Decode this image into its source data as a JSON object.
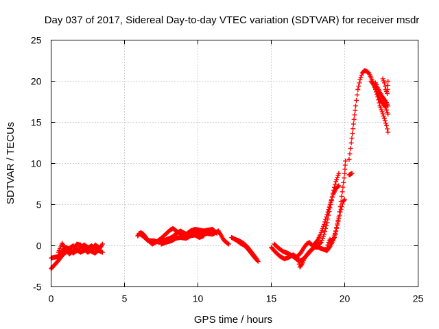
{
  "chart_data": {
    "type": "scatter",
    "title": "Day 037 of 2017, Sidereal Day-to-day VTEC variation (SDTVAR) for receiver msdr",
    "xlabel": "GPS time / hours",
    "ylabel": "SDTVAR / TECUs",
    "xlim": [
      0,
      25
    ],
    "ylim": [
      -5,
      25
    ],
    "x_ticks": [
      0,
      5,
      10,
      15,
      20,
      25
    ],
    "y_ticks": [
      -5,
      0,
      5,
      10,
      15,
      20,
      25
    ],
    "x_tick_labels": [
      "0",
      "5",
      "10",
      "15",
      "20",
      "25"
    ],
    "y_tick_labels": [
      "-5",
      "0",
      "5",
      "10",
      "15",
      "20",
      "25"
    ],
    "grid": true,
    "marker": "+",
    "series_color": "#ff0000",
    "series": [
      {
        "name": "SDTVAR",
        "segments": [
          [
            [
              0.0,
              -2.8
            ],
            [
              0.25,
              -2.3
            ],
            [
              0.5,
              -1.8
            ],
            [
              0.75,
              -1.2
            ],
            [
              1.0,
              -0.8
            ],
            [
              1.25,
              -0.3
            ],
            [
              1.5,
              0.0
            ],
            [
              1.75,
              -0.5
            ],
            [
              2.0,
              -0.8
            ],
            [
              2.25,
              -0.6
            ],
            [
              2.5,
              -0.3
            ],
            [
              2.75,
              0.0
            ],
            [
              3.0,
              -0.3
            ],
            [
              3.25,
              -0.6
            ],
            [
              3.5,
              -0.8
            ]
          ],
          [
            [
              0.0,
              -1.5
            ],
            [
              0.25,
              -1.4
            ],
            [
              0.5,
              -1.3
            ],
            [
              0.75,
              -0.7
            ],
            [
              1.0,
              -0.2
            ],
            [
              1.25,
              -0.4
            ],
            [
              1.5,
              -0.9
            ],
            [
              1.75,
              -0.6
            ],
            [
              2.0,
              -0.2
            ],
            [
              2.25,
              0.1
            ],
            [
              2.5,
              -0.2
            ],
            [
              2.75,
              -0.7
            ],
            [
              3.0,
              -0.9
            ],
            [
              3.25,
              -0.5
            ],
            [
              3.5,
              0.2
            ]
          ],
          [
            [
              0.5,
              -0.8
            ],
            [
              0.75,
              0.3
            ],
            [
              1.0,
              -0.5
            ],
            [
              1.25,
              -1.0
            ],
            [
              1.5,
              -0.6
            ],
            [
              1.75,
              0.2
            ],
            [
              2.0,
              0.1
            ],
            [
              2.25,
              -0.4
            ],
            [
              2.5,
              -0.8
            ],
            [
              2.75,
              -0.5
            ],
            [
              3.0,
              0.1
            ],
            [
              3.25,
              -0.2
            ]
          ],
          [
            [
              5.9,
              1.2
            ],
            [
              6.1,
              1.6
            ],
            [
              6.3,
              1.4
            ],
            [
              6.5,
              0.9
            ],
            [
              6.7,
              0.5
            ],
            [
              6.9,
              0.2
            ],
            [
              7.2,
              0.5
            ],
            [
              7.5,
              0.9
            ],
            [
              7.8,
              1.4
            ],
            [
              8.1,
              1.9
            ],
            [
              8.3,
              2.1
            ],
            [
              8.6,
              1.7
            ],
            [
              8.9,
              1.3
            ],
            [
              9.2,
              1.4
            ],
            [
              9.5,
              1.8
            ],
            [
              9.8,
              2.0
            ],
            [
              10.1,
              1.9
            ],
            [
              10.4,
              1.8
            ],
            [
              10.7,
              1.9
            ],
            [
              11.0,
              2.0
            ],
            [
              11.3,
              1.5
            ]
          ],
          [
            [
              6.0,
              1.5
            ],
            [
              6.3,
              1.1
            ],
            [
              6.6,
              0.6
            ],
            [
              7.0,
              0.6
            ],
            [
              7.4,
              0.4
            ],
            [
              7.8,
              0.7
            ],
            [
              8.2,
              1.0
            ],
            [
              8.5,
              1.4
            ],
            [
              8.8,
              1.8
            ],
            [
              9.1,
              1.5
            ],
            [
              9.5,
              1.2
            ],
            [
              9.8,
              1.5
            ],
            [
              10.2,
              1.4
            ],
            [
              10.6,
              1.5
            ],
            [
              11.0,
              1.4
            ],
            [
              11.4,
              1.8
            ],
            [
              11.6,
              1.2
            ],
            [
              11.8,
              0.6
            ],
            [
              12.1,
              0.2
            ]
          ],
          [
            [
              7.5,
              0.2
            ],
            [
              7.8,
              0.4
            ],
            [
              8.2,
              0.6
            ],
            [
              8.5,
              0.9
            ],
            [
              8.8,
              1.0
            ],
            [
              9.2,
              0.9
            ],
            [
              9.5,
              1.2
            ],
            [
              9.8,
              1.3
            ],
            [
              10.1,
              1.0
            ],
            [
              10.4,
              1.2
            ]
          ],
          [
            [
              12.3,
              1.0
            ],
            [
              12.6,
              0.7
            ],
            [
              12.9,
              0.3
            ],
            [
              13.2,
              0.0
            ],
            [
              13.5,
              -0.6
            ],
            [
              13.8,
              -1.3
            ],
            [
              14.1,
              -1.9
            ]
          ],
          [
            [
              12.5,
              0.8
            ],
            [
              12.8,
              0.6
            ],
            [
              13.1,
              0.3
            ],
            [
              13.4,
              -0.2
            ],
            [
              13.7,
              -0.9
            ],
            [
              14.0,
              -1.6
            ]
          ],
          [
            [
              15.0,
              -0.2
            ],
            [
              15.3,
              -0.8
            ],
            [
              15.6,
              -1.3
            ],
            [
              15.9,
              -1.6
            ],
            [
              16.2,
              -1.4
            ],
            [
              16.5,
              -1.1
            ],
            [
              16.8,
              -1.5
            ],
            [
              16.95,
              -2.6
            ],
            [
              17.1,
              -2.2
            ],
            [
              17.3,
              -1.4
            ],
            [
              17.6,
              -0.7
            ],
            [
              17.9,
              -0.2
            ],
            [
              18.2,
              -0.2
            ],
            [
              18.5,
              -0.4
            ],
            [
              18.8,
              -0.6
            ],
            [
              19.0,
              -0.1
            ],
            [
              19.2,
              0.6
            ],
            [
              19.4,
              1.8
            ],
            [
              19.6,
              3.5
            ],
            [
              19.8,
              6.0
            ],
            [
              20.0,
              8.8
            ],
            [
              20.05,
              10.3
            ]
          ],
          [
            [
              15.2,
              0.2
            ],
            [
              15.5,
              -0.3
            ],
            [
              15.8,
              -0.7
            ],
            [
              16.1,
              -0.9
            ],
            [
              16.4,
              -1.2
            ],
            [
              16.7,
              -1.6
            ],
            [
              16.9,
              -1.9
            ],
            [
              17.2,
              -1.6
            ],
            [
              17.5,
              -1.0
            ],
            [
              17.8,
              -0.4
            ],
            [
              18.1,
              0.0
            ],
            [
              18.4,
              0.4
            ],
            [
              18.6,
              1.4
            ],
            [
              18.8,
              2.8
            ],
            [
              19.0,
              4.6
            ],
            [
              19.2,
              6.4
            ],
            [
              19.4,
              7.8
            ],
            [
              19.6,
              8.8
            ]
          ],
          [
            [
              16.7,
              -1.4
            ],
            [
              17.0,
              -0.9
            ],
            [
              17.2,
              -0.3
            ],
            [
              17.4,
              0.2
            ],
            [
              17.6,
              0.4
            ],
            [
              17.8,
              0.0
            ],
            [
              18.0,
              0.3
            ],
            [
              18.2,
              0.8
            ],
            [
              18.4,
              1.6
            ],
            [
              18.6,
              2.6
            ],
            [
              18.8,
              3.8
            ],
            [
              19.0,
              5.0
            ],
            [
              19.2,
              6.2
            ],
            [
              19.4,
              6.9
            ],
            [
              19.6,
              7.3
            ]
          ],
          [
            [
              18.8,
              -0.2
            ],
            [
              18.9,
              0.4
            ],
            [
              19.0,
              0.8
            ],
            [
              19.1,
              0.5
            ],
            [
              19.3,
              1.0
            ],
            [
              19.5,
              2.5
            ],
            [
              19.7,
              4.1
            ],
            [
              19.9,
              5.4
            ],
            [
              20.0,
              5.6
            ]
          ],
          [
            [
              20.3,
              8.6
            ],
            [
              20.5,
              8.8
            ]
          ],
          [
            [
              20.3,
              10.5
            ],
            [
              20.45,
              12.5
            ],
            [
              20.6,
              14.8
            ],
            [
              20.75,
              17.0
            ],
            [
              20.9,
              19.0
            ],
            [
              21.05,
              20.2
            ],
            [
              21.2,
              21.0
            ],
            [
              21.35,
              21.3
            ],
            [
              21.5,
              21.2
            ],
            [
              21.65,
              21.0
            ],
            [
              21.8,
              20.4
            ],
            [
              21.95,
              19.8
            ],
            [
              22.1,
              19.0
            ],
            [
              22.25,
              18.1
            ],
            [
              22.4,
              17.0
            ],
            [
              22.55,
              16.3
            ],
            [
              22.7,
              15.5
            ],
            [
              22.85,
              14.6
            ],
            [
              22.95,
              13.8
            ]
          ],
          [
            [
              21.8,
              20.0
            ],
            [
              22.0,
              19.5
            ],
            [
              22.2,
              18.8
            ],
            [
              22.35,
              18.0
            ],
            [
              22.5,
              17.5
            ],
            [
              22.65,
              17.2
            ],
            [
              22.8,
              16.8
            ],
            [
              22.9,
              16.2
            ],
            [
              22.95,
              16.0
            ]
          ],
          [
            [
              22.1,
              19.8
            ],
            [
              22.3,
              19.0
            ],
            [
              22.5,
              18.3
            ],
            [
              22.7,
              17.8
            ],
            [
              22.85,
              17.4
            ],
            [
              22.95,
              17.0
            ]
          ],
          [
            [
              22.6,
              20.3
            ],
            [
              22.7,
              19.8
            ],
            [
              22.8,
              19.0
            ],
            [
              22.9,
              18.5
            ],
            [
              22.95,
              20.0
            ]
          ]
        ]
      }
    ]
  }
}
